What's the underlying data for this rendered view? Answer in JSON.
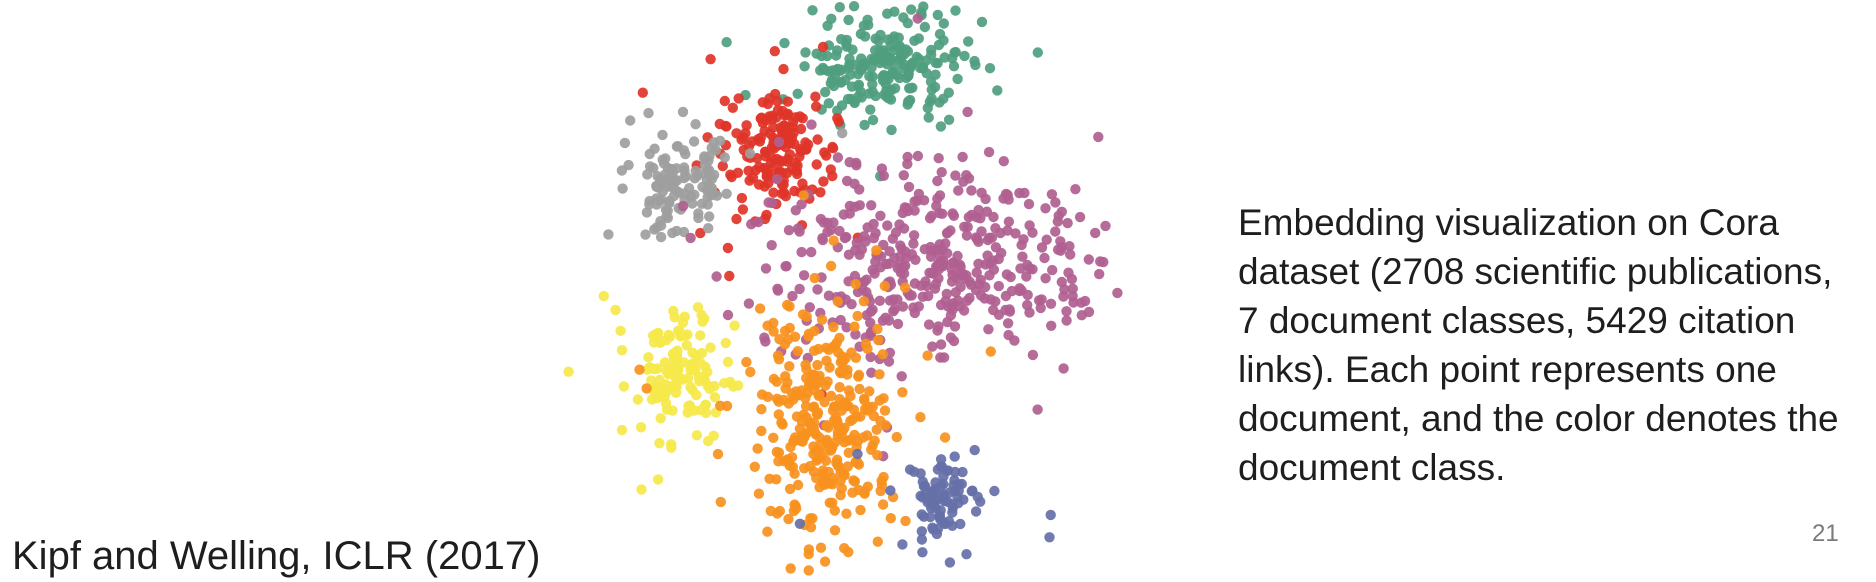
{
  "slide": {
    "caption": "Embedding visualization on Cora dataset (2708 scientific publications, 7 document classes, 5429 citation links). Each point represents one document, and the color denotes the document class.",
    "citation": "Kipf and Welling, ICLR (2017)",
    "page_number": "21"
  },
  "chart_data": {
    "type": "scatter",
    "title": "",
    "xlabel": "",
    "ylabel": "",
    "axes_visible": false,
    "grid": false,
    "legend": "none",
    "classes": 7,
    "series": [
      {
        "color": "#4f9e7f",
        "cluster": {
          "x": 0.12,
          "y": 0.78,
          "sx": 0.13,
          "sy": 0.11,
          "n": 230
        }
      },
      {
        "color": "#e03428",
        "cluster": {
          "x": -0.26,
          "y": 0.48,
          "sx": 0.09,
          "sy": 0.11,
          "n": 170
        }
      },
      {
        "color": "#9e9e9e",
        "cluster": {
          "x": -0.56,
          "y": 0.38,
          "sx": 0.08,
          "sy": 0.09,
          "n": 120
        }
      },
      {
        "color": "#b06090",
        "cluster": {
          "x": 0.3,
          "y": 0.1,
          "sx": 0.27,
          "sy": 0.17,
          "n": 420
        }
      },
      {
        "color": "#f5e84a",
        "cluster": {
          "x": -0.58,
          "y": -0.28,
          "sx": 0.09,
          "sy": 0.12,
          "n": 130
        }
      },
      {
        "color": "#f7911e",
        "cluster": {
          "x": -0.08,
          "y": -0.42,
          "sx": 0.12,
          "sy": 0.22,
          "n": 320
        }
      },
      {
        "color": "#6670a8",
        "cluster": {
          "x": 0.3,
          "y": -0.72,
          "sx": 0.06,
          "sy": 0.1,
          "n": 90
        }
      }
    ]
  }
}
